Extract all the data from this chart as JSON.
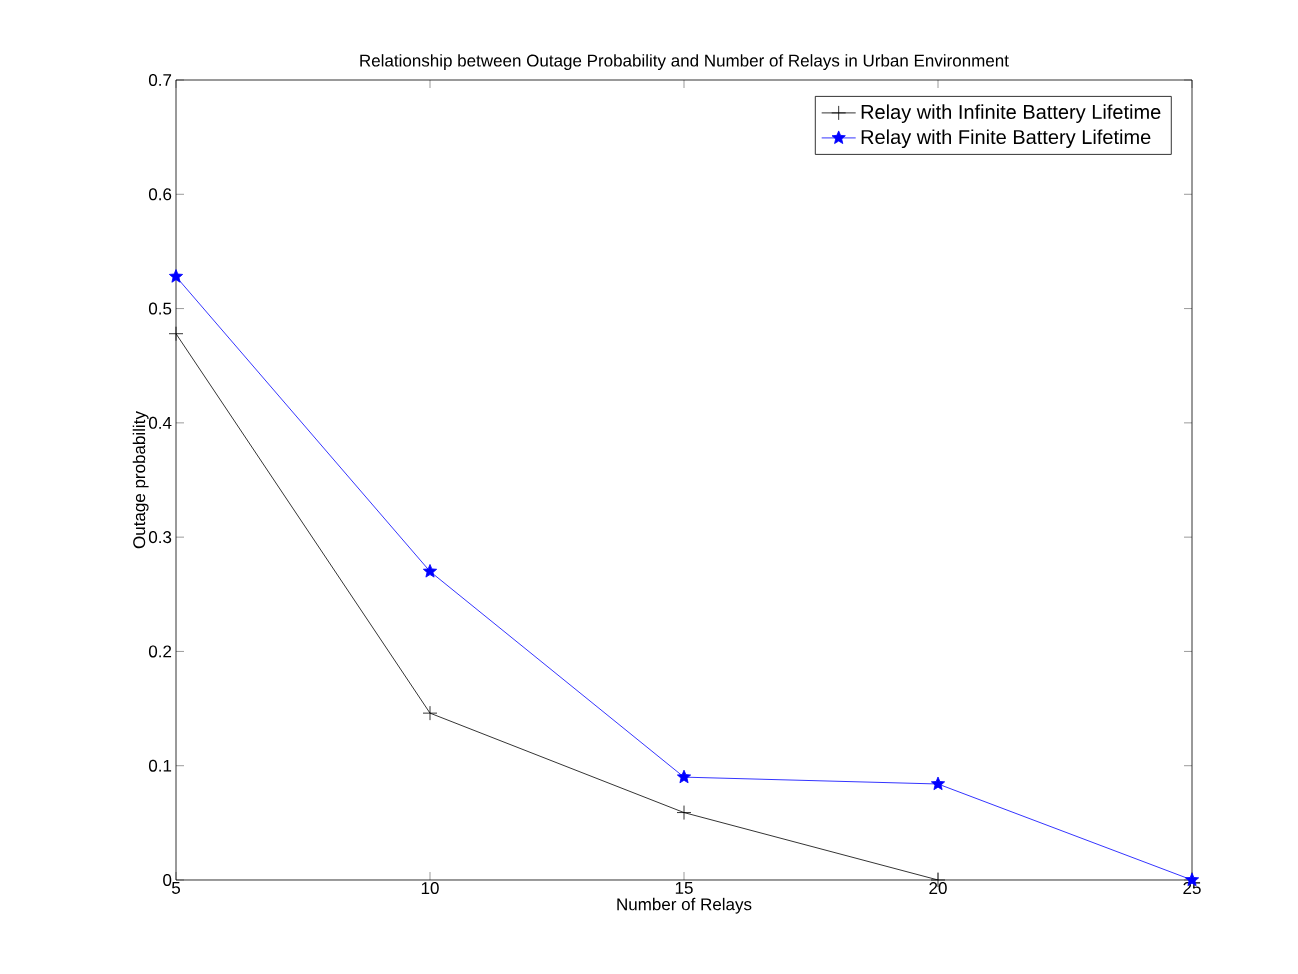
{
  "chart_data": {
    "type": "line",
    "title": "Relationship between Outage Probability and Number of Relays in Urban Environment",
    "xlabel": "Number of Relays",
    "ylabel": "Outage probability",
    "x": [
      5,
      10,
      15,
      20,
      25
    ],
    "series": [
      {
        "name": "Relay with Infinite Battery Lifetime",
        "color": "#000000",
        "marker": "cross",
        "values": [
          0.478,
          0.146,
          0.059,
          0,
          null
        ]
      },
      {
        "name": "Relay with Finite Battery Lifetime",
        "color": "#0000ff",
        "marker": "star",
        "values": [
          0.528,
          0.27,
          0.09,
          0.084,
          0
        ]
      }
    ],
    "xlim": [
      5,
      25
    ],
    "xticks": [
      5,
      10,
      15,
      20,
      25
    ],
    "ylim": [
      0,
      0.7
    ],
    "yticks": [
      0,
      0.1,
      0.2,
      0.3,
      0.4,
      0.5,
      0.6,
      0.7
    ],
    "grid": false,
    "legend": "top right",
    "line_style": "solid"
  }
}
